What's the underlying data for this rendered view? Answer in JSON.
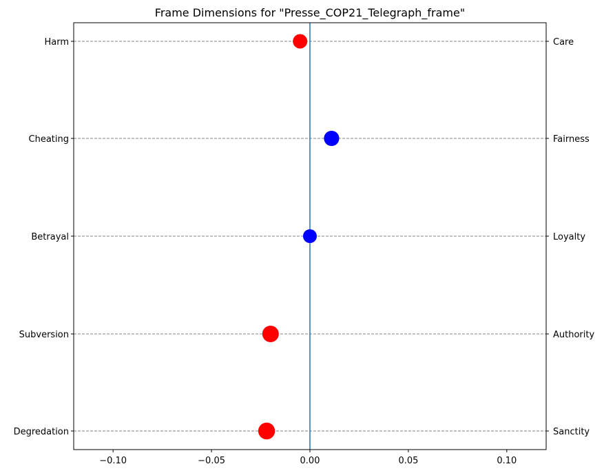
{
  "chart_data": {
    "type": "scatter",
    "title": "Frame Dimensions for \"Presse_COP21_Telegraph_frame\"",
    "xlim": [
      -0.12,
      0.12
    ],
    "x_ticks": [
      -0.1,
      -0.05,
      0.0,
      0.05,
      0.1
    ],
    "x_tick_labels": [
      "−0.10",
      "−0.05",
      "0.00",
      "0.05",
      "0.10"
    ],
    "left_labels": [
      "Harm",
      "Cheating",
      "Betrayal",
      "Subversion",
      "Degredation"
    ],
    "right_labels": [
      "Care",
      "Fairness",
      "Loyalty",
      "Authority",
      "Sanctity"
    ],
    "points": [
      {
        "category": "Care",
        "x": -0.005,
        "color": "#ff0000"
      },
      {
        "category": "Fairness",
        "x": 0.011,
        "color": "#0000ff"
      },
      {
        "category": "Loyalty",
        "x": 0.0,
        "color": "#0000ff"
      },
      {
        "category": "Authority",
        "x": -0.02,
        "color": "#ff0000"
      },
      {
        "category": "Sanctity",
        "x": -0.022,
        "color": "#ff0000"
      }
    ],
    "zero_line_color": "#1f77b4",
    "gridlines": "horizontal dashed",
    "colors": {
      "negative": "#ff0000",
      "positive": "#0000ff",
      "grid": "#808080"
    }
  }
}
